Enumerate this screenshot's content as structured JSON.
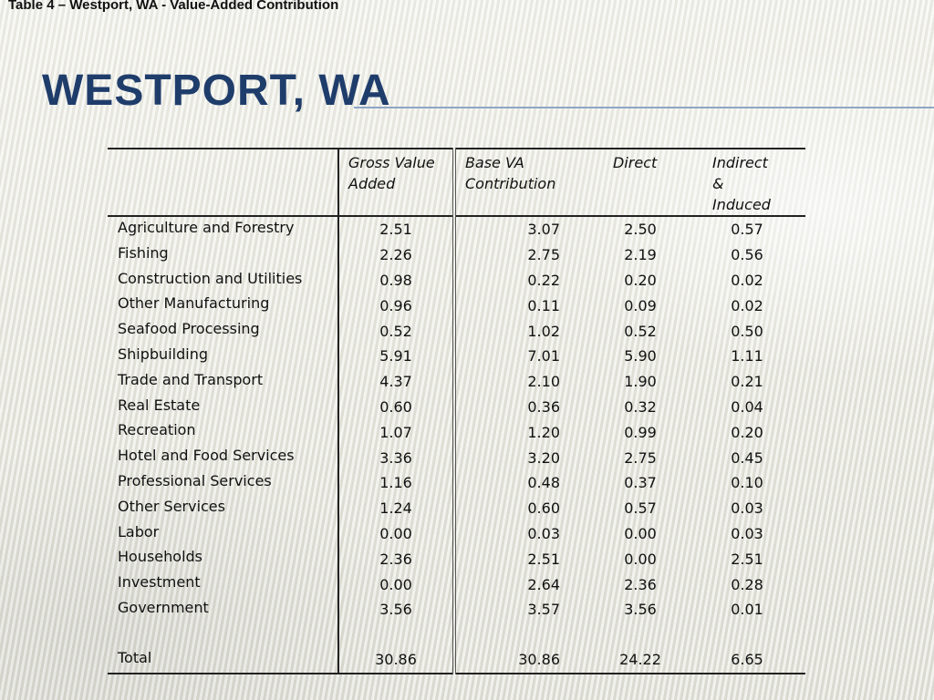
{
  "caption": "Table 4 – Westport, WA - Value-Added Contribution",
  "title": "Westport, WA",
  "table": {
    "headers": {
      "sector": "",
      "gross_value_added": "Gross Value Added",
      "base_va_contribution": "Base VA Contribution",
      "direct": "Direct",
      "indirect_induced": "Indirect & Induced"
    },
    "rows": [
      {
        "sector": "Agriculture and Forestry",
        "gva": "2.51",
        "base": "3.07",
        "direct": "2.50",
        "indirect": "0.57"
      },
      {
        "sector": "Fishing",
        "gva": "2.26",
        "base": "2.75",
        "direct": "2.19",
        "indirect": "0.56"
      },
      {
        "sector": "Construction and Utilities",
        "gva": "0.98",
        "base": "0.22",
        "direct": "0.20",
        "indirect": "0.02"
      },
      {
        "sector": "Other Manufacturing",
        "gva": "0.96",
        "base": "0.11",
        "direct": "0.09",
        "indirect": "0.02"
      },
      {
        "sector": "Seafood Processing",
        "gva": "0.52",
        "base": "1.02",
        "direct": "0.52",
        "indirect": "0.50"
      },
      {
        "sector": "Shipbuilding",
        "gva": "5.91",
        "base": "7.01",
        "direct": "5.90",
        "indirect": "1.11"
      },
      {
        "sector": "Trade and Transport",
        "gva": "4.37",
        "base": "2.10",
        "direct": "1.90",
        "indirect": "0.21"
      },
      {
        "sector": "Real Estate",
        "gva": "0.60",
        "base": "0.36",
        "direct": "0.32",
        "indirect": "0.04"
      },
      {
        "sector": "Recreation",
        "gva": "1.07",
        "base": "1.20",
        "direct": "0.99",
        "indirect": "0.20"
      },
      {
        "sector": "Hotel and Food Services",
        "gva": "3.36",
        "base": "3.20",
        "direct": "2.75",
        "indirect": "0.45"
      },
      {
        "sector": "Professional Services",
        "gva": "1.16",
        "base": "0.48",
        "direct": "0.37",
        "indirect": "0.10"
      },
      {
        "sector": "Other Services",
        "gva": "1.24",
        "base": "0.60",
        "direct": "0.57",
        "indirect": "0.03"
      },
      {
        "sector": "Labor",
        "gva": "0.00",
        "base": "0.03",
        "direct": "0.00",
        "indirect": "0.03"
      },
      {
        "sector": "Households",
        "gva": "2.36",
        "base": "2.51",
        "direct": "0.00",
        "indirect": "2.51"
      },
      {
        "sector": "Investment",
        "gva": "0.00",
        "base": "2.64",
        "direct": "2.36",
        "indirect": "0.28"
      },
      {
        "sector": "Government",
        "gva": "3.56",
        "base": "3.57",
        "direct": "3.56",
        "indirect": "0.01"
      }
    ],
    "total": {
      "sector": "Total",
      "gva": "30.86",
      "base": "30.86",
      "direct": "24.22",
      "indirect": "6.65"
    }
  }
}
